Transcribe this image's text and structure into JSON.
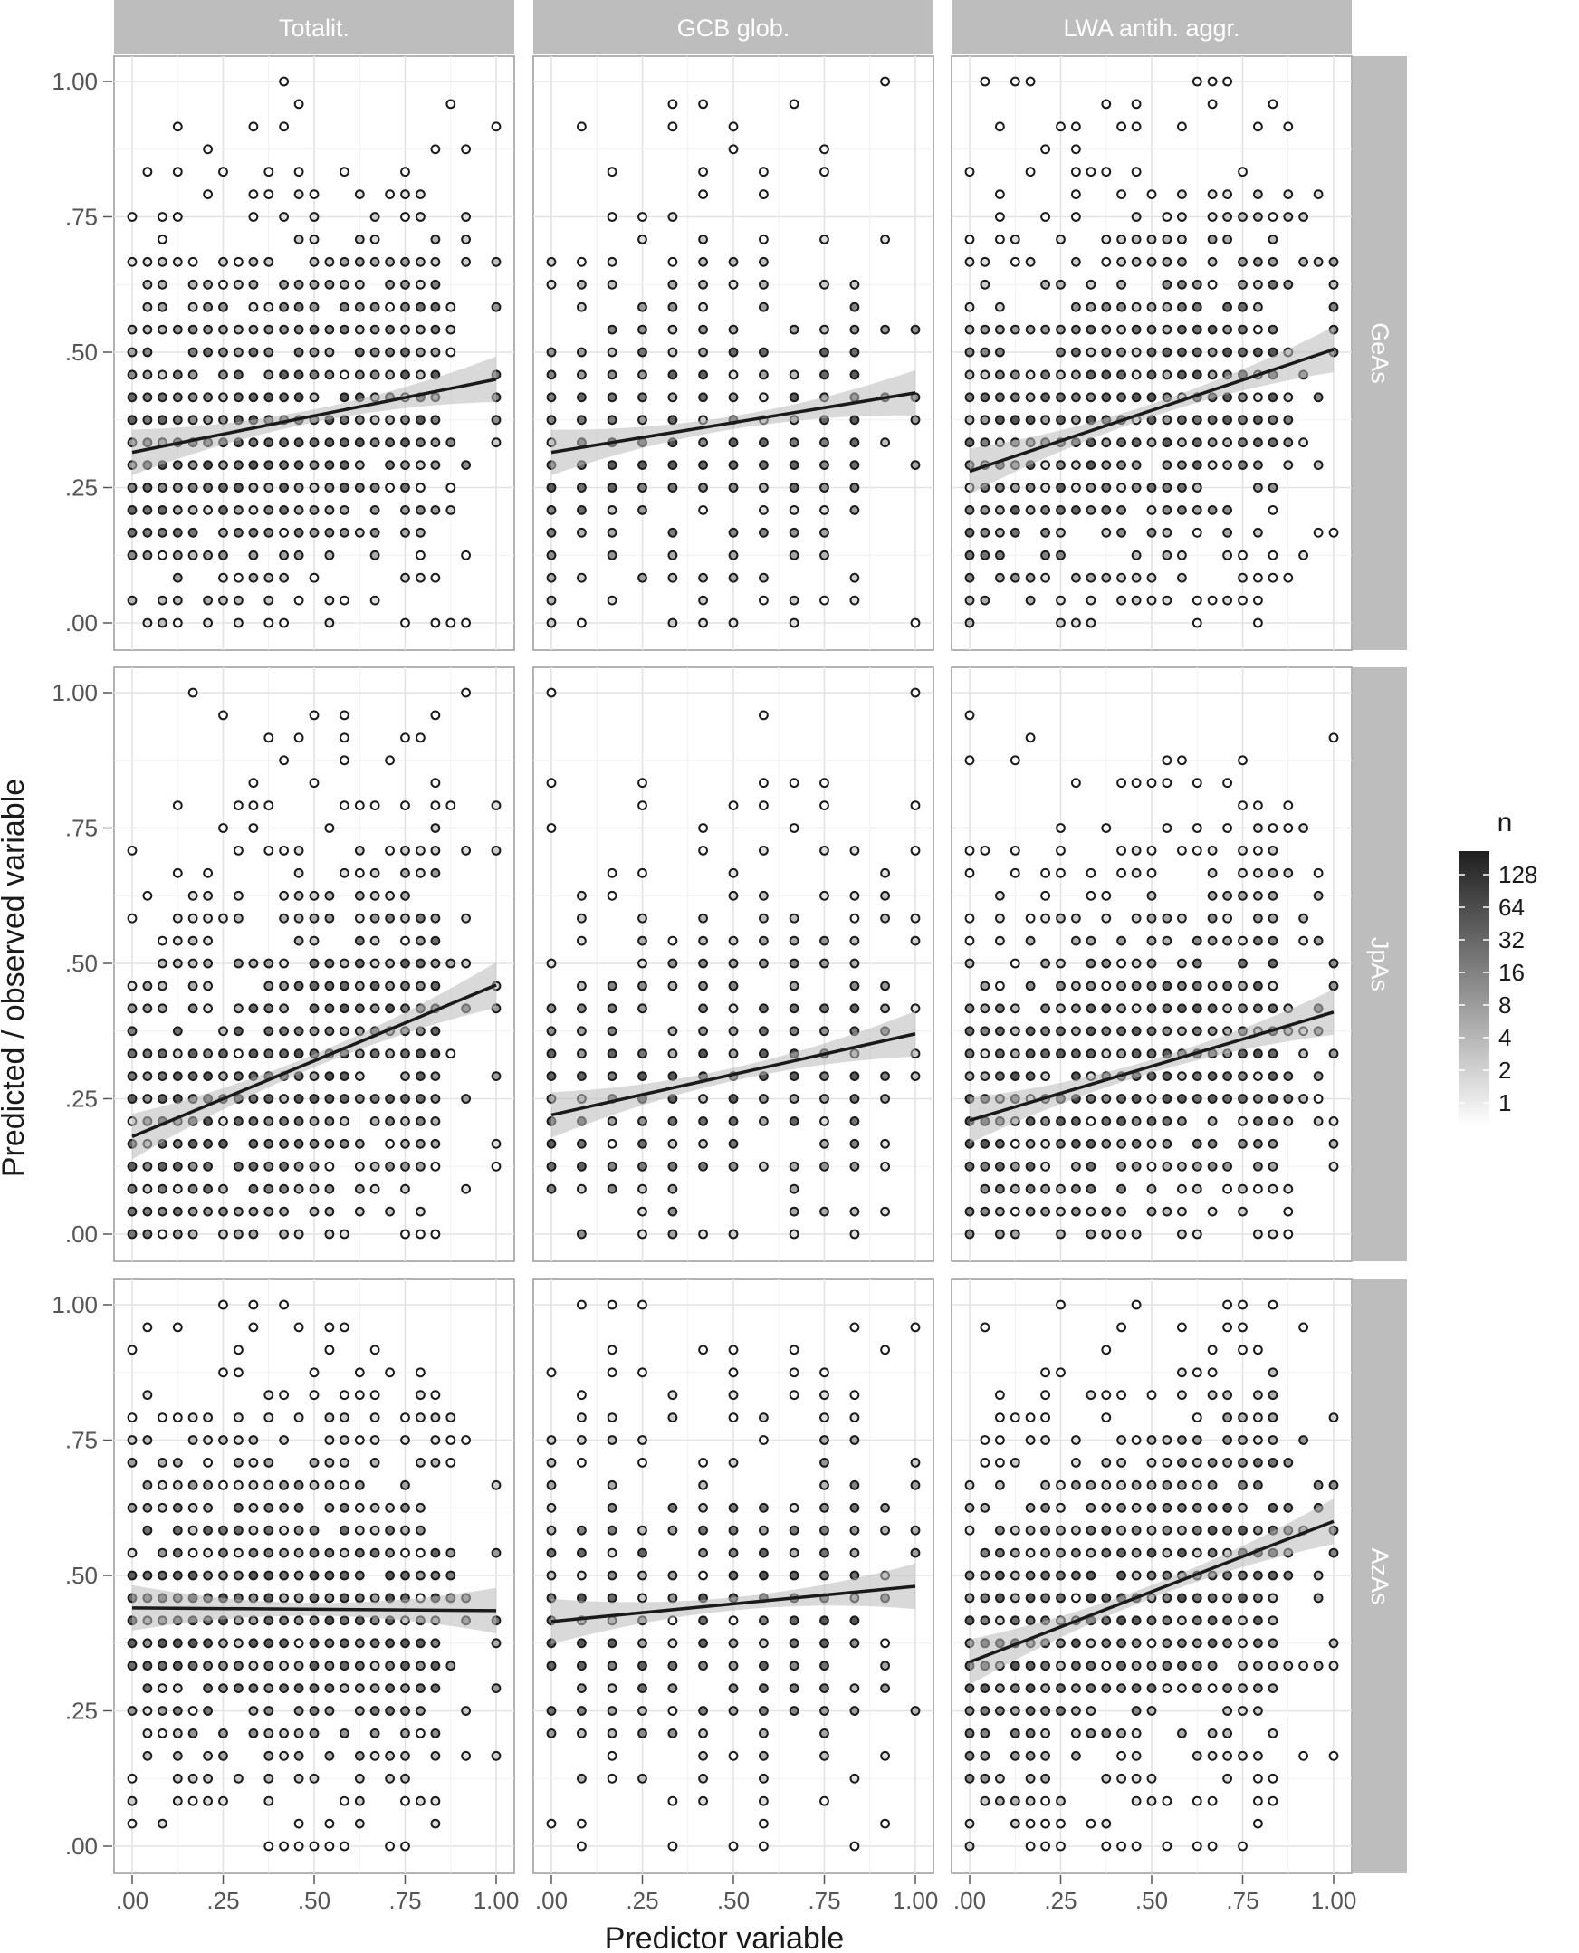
{
  "chart_data": {
    "type": "scatter",
    "xlabel": "Predictor variable",
    "ylabel": "Predicted / observed variable",
    "columns": [
      "Totalit.",
      "GCB glob.",
      "LWA antih. aggr."
    ],
    "rows": [
      "GeAs",
      "JpAs",
      "AzAs"
    ],
    "x_ticks": [
      ".00",
      ".25",
      ".50",
      ".75",
      "1.00"
    ],
    "y_ticks": [
      ".00",
      ".25",
      ".50",
      ".75",
      "1.00"
    ],
    "xlim": [
      0,
      1
    ],
    "ylim": [
      0,
      1
    ],
    "grid": true,
    "legend": {
      "title": "n",
      "type": "colorbar",
      "scale": "log",
      "labels": [
        "128",
        "64",
        "32",
        "16",
        "8",
        "4",
        "2",
        "1"
      ],
      "colors": [
        "#ffffff",
        "#1f1f1f"
      ],
      "placement": "right"
    },
    "series_marks": "open circles shaded by count n; black regression line with grey confidence band",
    "panels": [
      {
        "row": "GeAs",
        "col": "Totalit.",
        "line": [
          [
            0,
            0.315
          ],
          [
            1,
            0.45
          ]
        ],
        "x_vals": [
          0,
          0.042,
          0.083,
          0.125,
          0.167,
          0.208,
          0.25,
          0.292,
          0.333,
          0.375,
          0.417,
          0.458,
          0.5,
          0.542,
          0.583,
          0.625,
          0.667,
          0.708,
          0.75,
          0.792,
          0.833,
          0.875,
          0.917,
          1.0
        ],
        "y_range": [
          0,
          1
        ]
      },
      {
        "row": "GeAs",
        "col": "GCB glob.",
        "line": [
          [
            0,
            0.315
          ],
          [
            1,
            0.425
          ]
        ],
        "x_vals": [
          0,
          0.083,
          0.167,
          0.25,
          0.333,
          0.417,
          0.5,
          0.583,
          0.667,
          0.75,
          0.833,
          0.917,
          1.0
        ],
        "y_range": [
          0,
          1
        ]
      },
      {
        "row": "GeAs",
        "col": "LWA antih. aggr.",
        "line": [
          [
            0,
            0.28
          ],
          [
            1,
            0.505
          ]
        ],
        "x_vals": [
          0,
          0.042,
          0.083,
          0.125,
          0.167,
          0.208,
          0.25,
          0.292,
          0.333,
          0.375,
          0.417,
          0.458,
          0.5,
          0.542,
          0.583,
          0.625,
          0.667,
          0.708,
          0.75,
          0.792,
          0.833,
          0.875,
          0.917,
          0.958,
          1.0
        ],
        "y_range": [
          0,
          1
        ]
      },
      {
        "row": "JpAs",
        "col": "Totalit.",
        "line": [
          [
            0,
            0.18
          ],
          [
            1,
            0.46
          ]
        ],
        "x_vals": [
          0,
          0.042,
          0.083,
          0.125,
          0.167,
          0.208,
          0.25,
          0.292,
          0.333,
          0.375,
          0.417,
          0.458,
          0.5,
          0.542,
          0.583,
          0.625,
          0.667,
          0.708,
          0.75,
          0.792,
          0.833,
          0.875,
          0.917,
          1.0
        ],
        "y_range": [
          0,
          1
        ]
      },
      {
        "row": "JpAs",
        "col": "GCB glob.",
        "line": [
          [
            0,
            0.22
          ],
          [
            1,
            0.37
          ]
        ],
        "x_vals": [
          0,
          0.083,
          0.167,
          0.25,
          0.333,
          0.417,
          0.5,
          0.583,
          0.667,
          0.75,
          0.833,
          0.917,
          1.0
        ],
        "y_range": [
          0,
          1
        ]
      },
      {
        "row": "JpAs",
        "col": "LWA antih. aggr.",
        "line": [
          [
            0,
            0.21
          ],
          [
            1,
            0.41
          ]
        ],
        "x_vals": [
          0,
          0.042,
          0.083,
          0.125,
          0.167,
          0.208,
          0.25,
          0.292,
          0.333,
          0.375,
          0.417,
          0.458,
          0.5,
          0.542,
          0.583,
          0.625,
          0.667,
          0.708,
          0.75,
          0.792,
          0.833,
          0.875,
          0.917,
          0.958,
          1.0
        ],
        "y_range": [
          0,
          1
        ]
      },
      {
        "row": "AzAs",
        "col": "Totalit.",
        "line": [
          [
            0,
            0.44
          ],
          [
            1,
            0.435
          ]
        ],
        "x_vals": [
          0,
          0.042,
          0.083,
          0.125,
          0.167,
          0.208,
          0.25,
          0.292,
          0.333,
          0.375,
          0.417,
          0.458,
          0.5,
          0.542,
          0.583,
          0.625,
          0.667,
          0.708,
          0.75,
          0.792,
          0.833,
          0.875,
          0.917,
          1.0
        ],
        "y_range": [
          0,
          1
        ]
      },
      {
        "row": "AzAs",
        "col": "GCB glob.",
        "line": [
          [
            0,
            0.415
          ],
          [
            1,
            0.48
          ]
        ],
        "x_vals": [
          0,
          0.083,
          0.167,
          0.25,
          0.333,
          0.417,
          0.5,
          0.583,
          0.667,
          0.75,
          0.833,
          0.917,
          1.0
        ],
        "y_range": [
          0,
          1
        ]
      },
      {
        "row": "AzAs",
        "col": "LWA antih. aggr.",
        "line": [
          [
            0,
            0.34
          ],
          [
            1,
            0.6
          ]
        ],
        "x_vals": [
          0,
          0.042,
          0.083,
          0.125,
          0.167,
          0.208,
          0.25,
          0.292,
          0.333,
          0.375,
          0.417,
          0.458,
          0.5,
          0.542,
          0.583,
          0.625,
          0.667,
          0.708,
          0.75,
          0.792,
          0.833,
          0.875,
          0.917,
          0.958,
          1.0
        ],
        "y_range": [
          0,
          1
        ]
      }
    ]
  }
}
